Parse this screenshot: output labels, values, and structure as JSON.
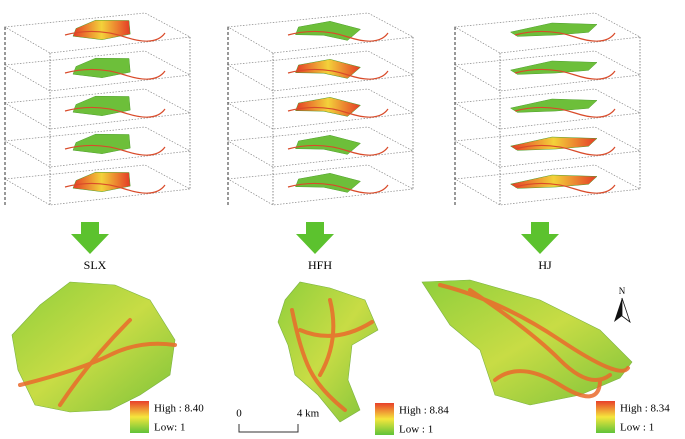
{
  "panels": [
    {
      "label": "SLX",
      "legend": {
        "high": "High : 8.40",
        "low": "Low: 1"
      }
    },
    {
      "label": "HFH",
      "legend": {
        "high": "High : 8.84",
        "low": "Low : 1"
      }
    },
    {
      "label": "HJ",
      "legend": {
        "high": "High : 8.34",
        "low": "Low : 1"
      }
    }
  ],
  "scale_bar": {
    "start": "0",
    "end": "4 km"
  },
  "north_arrow": "N"
}
